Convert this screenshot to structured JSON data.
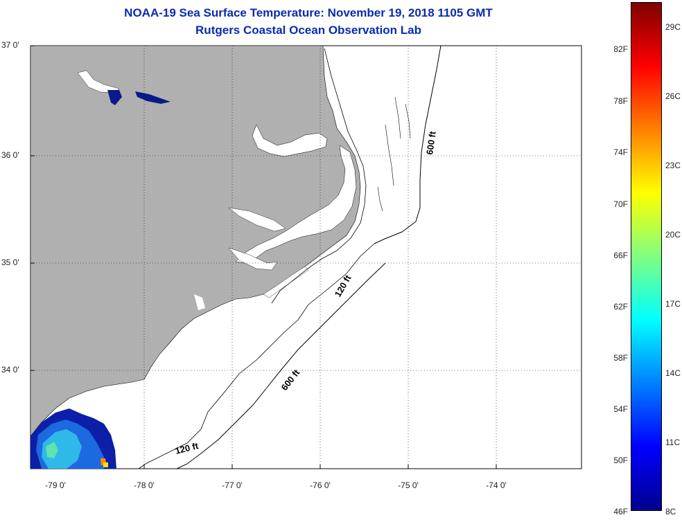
{
  "title_line1": "NOAA-19 Sea Surface Temperature:  November 19, 2018 1105 GMT",
  "title_line2": "Rutgers Coastal Ocean Observation Lab",
  "lat_labels": [
    "37 0'",
    "36 0'",
    "35 0'",
    "34 0'"
  ],
  "lon_labels": [
    "-79 0'",
    "-78 0'",
    "-77 0'",
    "-76 0'",
    "-75 0'",
    "-74 0'"
  ],
  "colorbar": {
    "fahrenheit": [
      "82F",
      "78F",
      "74F",
      "70F",
      "66F",
      "62F",
      "58F",
      "54F",
      "50F",
      "46F"
    ],
    "celsius": [
      "29C",
      "26C",
      "23C",
      "20C",
      "17C",
      "14C",
      "11C",
      "8C"
    ],
    "colors": [
      "#7f0000",
      "#ff0000",
      "#ff8000",
      "#ffff00",
      "#80ff80",
      "#00ffff",
      "#0080ff",
      "#0000ff",
      "#00008f"
    ]
  },
  "contours": {
    "label_600_north": "600 ft",
    "label_120_mid": "120 ft",
    "label_600_south": "600 ft",
    "label_120_south": "120 ft"
  },
  "colors": {
    "land": "#b0b0b0",
    "water_mask": "#ffffff",
    "title": "#0a2bb0",
    "grid": "#000000"
  }
}
